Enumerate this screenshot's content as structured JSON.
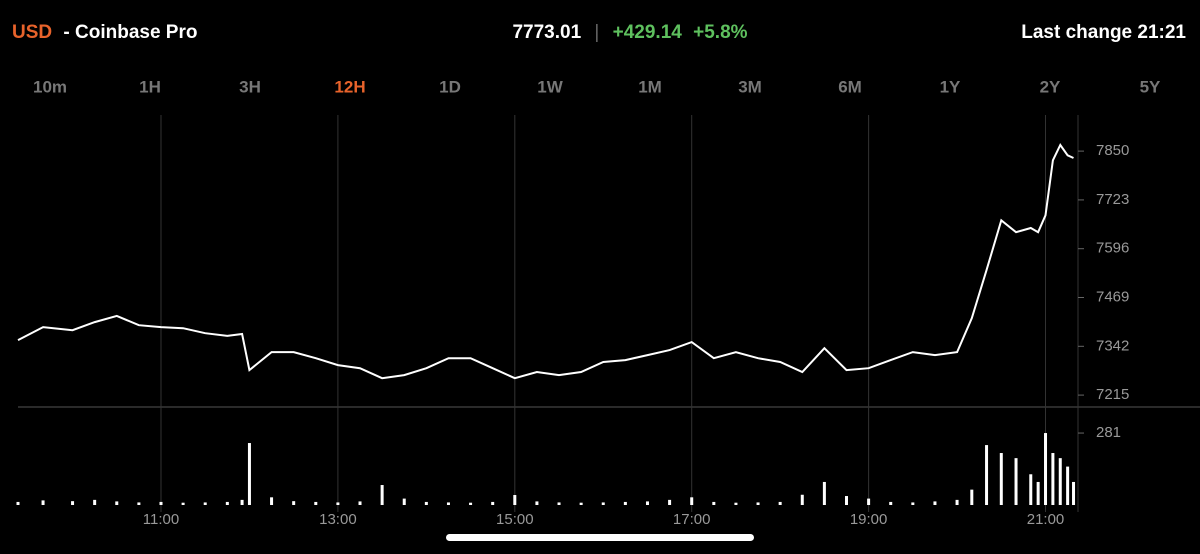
{
  "header": {
    "currency": "USD",
    "exchange": "- Coinbase Pro",
    "price": "7773.01",
    "separator": "|",
    "change": "+429.14",
    "change_pct": "+5.8%",
    "last_change": "Last change 21:21"
  },
  "tabs": {
    "items": [
      "10m",
      "1H",
      "3H",
      "12H",
      "1D",
      "1W",
      "1M",
      "3M",
      "6M",
      "1Y",
      "2Y",
      "5Y"
    ],
    "active": "12H"
  },
  "chart_data": {
    "type": "line",
    "color": "#ffffff",
    "x": [
      "09:23",
      "09:40",
      "10:00",
      "10:15",
      "10:30",
      "10:45",
      "11:00",
      "11:15",
      "11:30",
      "11:45",
      "11:55",
      "12:00",
      "12:15",
      "12:30",
      "12:45",
      "13:00",
      "13:15",
      "13:30",
      "13:45",
      "14:00",
      "14:15",
      "14:30",
      "14:45",
      "15:00",
      "15:15",
      "15:30",
      "15:45",
      "16:00",
      "16:15",
      "16:30",
      "16:45",
      "17:00",
      "17:15",
      "17:30",
      "17:45",
      "18:00",
      "18:15",
      "18:30",
      "18:45",
      "19:00",
      "19:15",
      "19:30",
      "19:45",
      "20:00",
      "20:10",
      "20:20",
      "20:30",
      "20:40",
      "20:50",
      "20:55",
      "21:00",
      "21:05",
      "21:10",
      "21:15",
      "21:19"
    ],
    "values": [
      7358,
      7392,
      7384,
      7405,
      7421,
      7397,
      7392,
      7389,
      7376,
      7369,
      7374,
      7280,
      7327,
      7327,
      7311,
      7293,
      7285,
      7259,
      7267,
      7285,
      7311,
      7311,
      7285,
      7259,
      7275,
      7267,
      7275,
      7301,
      7306,
      7319,
      7332,
      7353,
      7311,
      7327,
      7311,
      7301,
      7275,
      7337,
      7280,
      7285,
      7306,
      7327,
      7319,
      7327,
      7415,
      7540,
      7670,
      7639,
      7650,
      7639,
      7683,
      7826,
      7866,
      7839,
      7832
    ],
    "xlim": [
      "09:23",
      "21:20"
    ],
    "xticks": [
      "11:00",
      "13:00",
      "15:00",
      "17:00",
      "19:00",
      "21:00"
    ],
    "ylim": [
      7184,
      7944
    ],
    "yticks": [
      7215,
      7342,
      7469,
      7596,
      7723,
      7850
    ],
    "volume": {
      "type": "bar",
      "color": "#ffffff",
      "values": [
        12,
        18,
        15,
        20,
        14,
        10,
        12,
        9,
        10,
        12,
        20,
        242,
        30,
        15,
        12,
        10,
        14,
        78,
        25,
        12,
        10,
        9,
        12,
        39,
        14,
        10,
        9,
        10,
        12,
        14,
        20,
        30,
        12,
        9,
        10,
        12,
        40,
        90,
        35,
        25,
        12,
        10,
        14,
        20,
        60,
        234,
        203,
        183,
        120,
        90,
        281,
        203,
        183,
        150,
        90
      ],
      "ylim": [
        0,
        371
      ],
      "yticks": [
        281
      ]
    }
  }
}
